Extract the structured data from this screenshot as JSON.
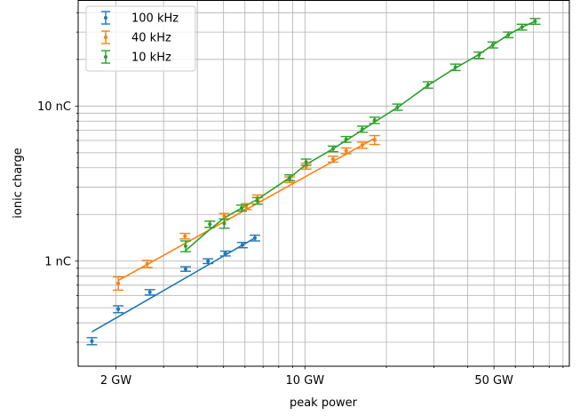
{
  "chart_data": {
    "type": "scatter",
    "xlabel": "peak power",
    "ylabel": "ionic charge",
    "x_scale": "log",
    "y_scale": "log",
    "x_unit": "GW",
    "y_unit": "nC",
    "xlim": [
      1.45,
      95
    ],
    "ylim": [
      0.21,
      48
    ],
    "grid": true,
    "grid_includes_minor": true,
    "legend_placement": "top-left",
    "x_ticks": [
      {
        "value": 2,
        "label": "2 GW"
      },
      {
        "value": 10,
        "label": "10 GW"
      },
      {
        "value": 50,
        "label": "50 GW"
      }
    ],
    "y_ticks": [
      {
        "value": 1,
        "label": "1 nC"
      },
      {
        "value": 10,
        "label": "10 nC"
      }
    ],
    "series": [
      {
        "name": "100 kHz",
        "color": "#1f77b4",
        "points": [
          {
            "x": 1.63,
            "y": 0.305,
            "err": 0.016
          },
          {
            "x": 2.04,
            "y": 0.49,
            "err": 0.025
          },
          {
            "x": 2.67,
            "y": 0.63,
            "err": 0.025
          },
          {
            "x": 3.62,
            "y": 0.89,
            "err": 0.03
          },
          {
            "x": 4.38,
            "y": 1.0,
            "err": 0.035
          },
          {
            "x": 5.08,
            "y": 1.12,
            "err": 0.04
          },
          {
            "x": 5.87,
            "y": 1.27,
            "err": 0.05
          },
          {
            "x": 6.53,
            "y": 1.41,
            "err": 0.06
          }
        ],
        "fit": [
          {
            "x": 1.63,
            "y": 0.35
          },
          {
            "x": 6.53,
            "y": 1.41
          }
        ]
      },
      {
        "name": "40 kHz",
        "color": "#ff7f0e",
        "points": [
          {
            "x": 2.04,
            "y": 0.72,
            "err": 0.07
          },
          {
            "x": 2.61,
            "y": 0.96,
            "err": 0.05
          },
          {
            "x": 3.6,
            "y": 1.45,
            "err": 0.06
          },
          {
            "x": 4.45,
            "y": 1.73,
            "err": 0.08
          },
          {
            "x": 5.03,
            "y": 1.95,
            "err": 0.08
          },
          {
            "x": 6.06,
            "y": 2.25,
            "err": 0.1
          },
          {
            "x": 6.67,
            "y": 2.55,
            "err": 0.12
          },
          {
            "x": 8.78,
            "y": 3.35,
            "err": 0.14
          },
          {
            "x": 10.1,
            "y": 4.1,
            "err": 0.18
          },
          {
            "x": 12.7,
            "y": 4.55,
            "err": 0.2
          },
          {
            "x": 14.2,
            "y": 5.15,
            "err": 0.22
          },
          {
            "x": 16.3,
            "y": 5.6,
            "err": 0.26
          },
          {
            "x": 18.1,
            "y": 6.05,
            "err": 0.4
          }
        ],
        "fit": [
          {
            "x": 2.04,
            "y": 0.75
          },
          {
            "x": 18.1,
            "y": 6.2
          }
        ]
      },
      {
        "name": "10 kHz",
        "color": "#2ca02c",
        "points": [
          {
            "x": 3.62,
            "y": 1.25,
            "err": 0.1
          },
          {
            "x": 4.45,
            "y": 1.73,
            "err": 0.08
          },
          {
            "x": 5.03,
            "y": 1.75,
            "err": 0.12
          },
          {
            "x": 5.83,
            "y": 2.2,
            "err": 0.1
          },
          {
            "x": 6.67,
            "y": 2.45,
            "err": 0.12
          },
          {
            "x": 8.78,
            "y": 3.45,
            "err": 0.15
          },
          {
            "x": 10.1,
            "y": 4.35,
            "err": 0.2
          },
          {
            "x": 12.7,
            "y": 5.3,
            "err": 0.22
          },
          {
            "x": 14.2,
            "y": 6.1,
            "err": 0.26
          },
          {
            "x": 16.3,
            "y": 7.1,
            "err": 0.32
          },
          {
            "x": 18.1,
            "y": 8.1,
            "err": 0.38
          },
          {
            "x": 22.0,
            "y": 9.85,
            "err": 0.45
          },
          {
            "x": 28.5,
            "y": 13.7,
            "err": 0.65
          },
          {
            "x": 36.0,
            "y": 17.8,
            "err": 0.85
          },
          {
            "x": 44.0,
            "y": 21.3,
            "err": 1.0
          },
          {
            "x": 49.5,
            "y": 24.8,
            "err": 1.1
          },
          {
            "x": 56.5,
            "y": 28.8,
            "err": 1.2
          },
          {
            "x": 63.5,
            "y": 32.3,
            "err": 1.4
          },
          {
            "x": 71.0,
            "y": 35.2,
            "err": 1.5
          }
        ],
        "fit": [
          {
            "x": 3.62,
            "y": 1.17
          },
          {
            "x": 4.45,
            "y": 1.6
          },
          {
            "x": 5.03,
            "y": 1.9
          },
          {
            "x": 5.83,
            "y": 2.2
          },
          {
            "x": 6.67,
            "y": 2.5
          },
          {
            "x": 8.78,
            "y": 3.45
          },
          {
            "x": 10.1,
            "y": 4.2
          },
          {
            "x": 12.7,
            "y": 5.3
          },
          {
            "x": 14.2,
            "y": 6.0
          },
          {
            "x": 16.3,
            "y": 7.0
          },
          {
            "x": 18.1,
            "y": 7.9
          },
          {
            "x": 22.0,
            "y": 9.8
          },
          {
            "x": 28.5,
            "y": 13.6
          },
          {
            "x": 36.0,
            "y": 17.6
          },
          {
            "x": 44.0,
            "y": 21.5
          },
          {
            "x": 49.5,
            "y": 24.8
          },
          {
            "x": 56.5,
            "y": 28.8
          },
          {
            "x": 63.5,
            "y": 32.3
          },
          {
            "x": 71.0,
            "y": 35.2
          }
        ]
      }
    ]
  }
}
